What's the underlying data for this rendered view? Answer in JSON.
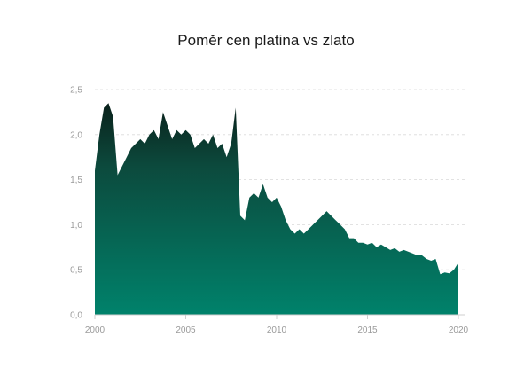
{
  "chart_data": {
    "type": "area",
    "title": "Poměr cen platina vs zlato",
    "xlabel": "",
    "ylabel": "",
    "xlim": [
      2000,
      2020
    ],
    "ylim": [
      0,
      2.5
    ],
    "x_ticks": [
      "2000",
      "2005",
      "2010",
      "2015",
      "2020"
    ],
    "y_ticks": [
      "0,0",
      "0,5",
      "1,0",
      "1,5",
      "2,0",
      "2,5"
    ],
    "grid": true,
    "legend": "none",
    "colors": {
      "fill_top": "#0a211b",
      "fill_mid": "#0c4a3d",
      "fill_bottom": "#00826b",
      "text": "#1a1a1a",
      "tick": "#9a9a9a",
      "grid": "#d9d9d9"
    },
    "series": [
      {
        "x": [
          2000.0,
          2000.25,
          2000.5,
          2000.75,
          2001.0,
          2001.25,
          2001.5,
          2001.75,
          2002.0,
          2002.25,
          2002.5,
          2002.75,
          2003.0,
          2003.25,
          2003.5,
          2003.75,
          2004.0,
          2004.25,
          2004.5,
          2004.75,
          2005.0,
          2005.25,
          2005.5,
          2005.75,
          2006.0,
          2006.25,
          2006.5,
          2006.75,
          2007.0,
          2007.25,
          2007.5,
          2007.75,
          2008.0,
          2008.25,
          2008.5,
          2008.75,
          2009.0,
          2009.25,
          2009.5,
          2009.75,
          2010.0,
          2010.25,
          2010.5,
          2010.75,
          2011.0,
          2011.25,
          2011.5,
          2011.75,
          2012.0,
          2012.25,
          2012.5,
          2012.75,
          2013.0,
          2013.25,
          2013.5,
          2013.75,
          2014.0,
          2014.25,
          2014.5,
          2014.75,
          2015.0,
          2015.25,
          2015.5,
          2015.75,
          2016.0,
          2016.25,
          2016.5,
          2016.75,
          2017.0,
          2017.25,
          2017.5,
          2017.75,
          2018.0,
          2018.25,
          2018.5,
          2018.75,
          2019.0,
          2019.25,
          2019.5,
          2019.75,
          2020.0
        ],
        "values": [
          1.6,
          2.0,
          2.3,
          2.35,
          2.2,
          1.55,
          1.65,
          1.75,
          1.85,
          1.9,
          1.95,
          1.9,
          2.0,
          2.05,
          1.95,
          2.25,
          2.1,
          1.95,
          2.05,
          2.0,
          2.05,
          2.0,
          1.85,
          1.9,
          1.95,
          1.9,
          2.0,
          1.85,
          1.9,
          1.75,
          1.9,
          2.3,
          1.1,
          1.05,
          1.3,
          1.35,
          1.3,
          1.45,
          1.3,
          1.25,
          1.3,
          1.2,
          1.05,
          0.95,
          0.9,
          0.95,
          0.9,
          0.95,
          1.0,
          1.05,
          1.1,
          1.15,
          1.1,
          1.05,
          1.0,
          0.95,
          0.85,
          0.85,
          0.8,
          0.8,
          0.78,
          0.8,
          0.75,
          0.78,
          0.75,
          0.72,
          0.74,
          0.7,
          0.72,
          0.7,
          0.68,
          0.66,
          0.66,
          0.62,
          0.6,
          0.62,
          0.45,
          0.47,
          0.46,
          0.5,
          0.58
        ]
      }
    ]
  }
}
